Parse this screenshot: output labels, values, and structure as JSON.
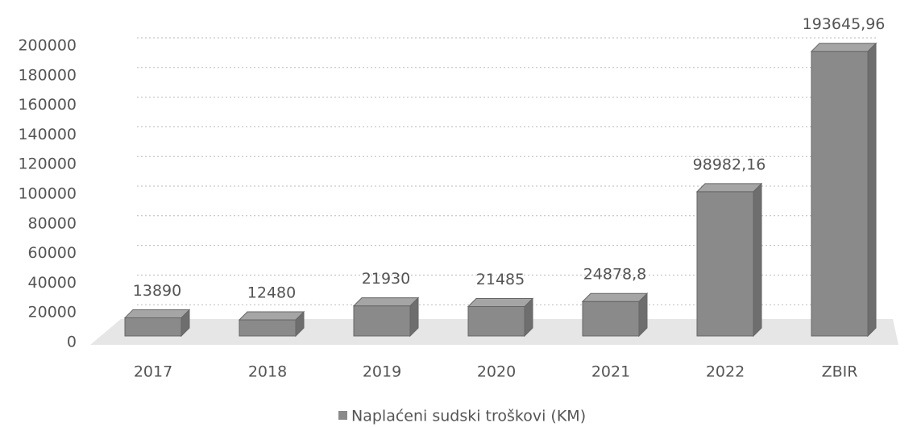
{
  "chart_data": {
    "type": "bar3d",
    "categories": [
      "2017",
      "2018",
      "2019",
      "2020",
      "2021",
      "2022",
      "ZBIR"
    ],
    "series": [
      {
        "name": "Naplaćeni sudski troškovi (KM)",
        "color": "#8a8a8a",
        "values": [
          13890,
          12480,
          21930,
          21485,
          24878.8,
          98982.16,
          193645.96
        ],
        "value_labels": [
          "13890",
          "12480",
          "21930",
          "21485",
          "24878,8",
          "98982,16",
          "193645,96"
        ]
      }
    ],
    "ylim": [
      0,
      200000
    ],
    "yticks": [
      0,
      20000,
      40000,
      60000,
      80000,
      100000,
      120000,
      140000,
      160000,
      180000,
      200000
    ],
    "grid": true,
    "legend": "bottom"
  }
}
